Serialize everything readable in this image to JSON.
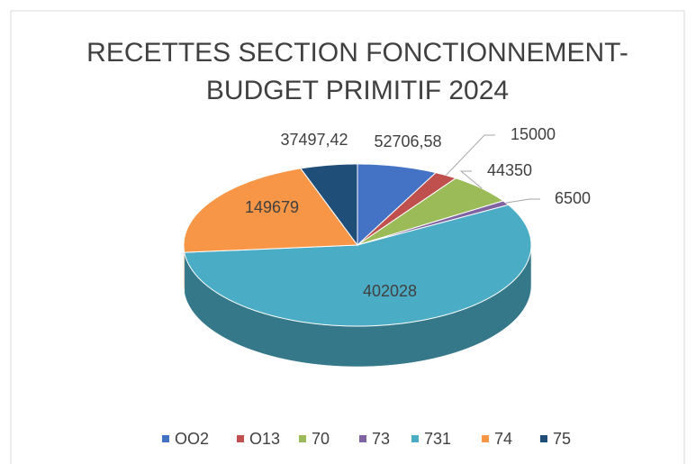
{
  "chart_data": {
    "type": "pie3d",
    "title": [
      "RECETTES SECTION FONCTIONNEMENT-",
      "BUDGET PRIMITIF 2024"
    ],
    "categories": [
      "OO2",
      "O13",
      "70",
      "73",
      "731",
      "74",
      "75"
    ],
    "values": [
      52706.58,
      15000,
      44350,
      6500,
      402028,
      149679,
      37497.42
    ],
    "value_labels": [
      "52706,58",
      "15000",
      "44350",
      "6500",
      "402028",
      "149679",
      "37497,42"
    ],
    "colors": [
      "#4472c4",
      "#c0504d",
      "#9bbb59",
      "#8064a2",
      "#4bacc6",
      "#f79646",
      "#1f4e79"
    ],
    "legend": "bottom"
  }
}
